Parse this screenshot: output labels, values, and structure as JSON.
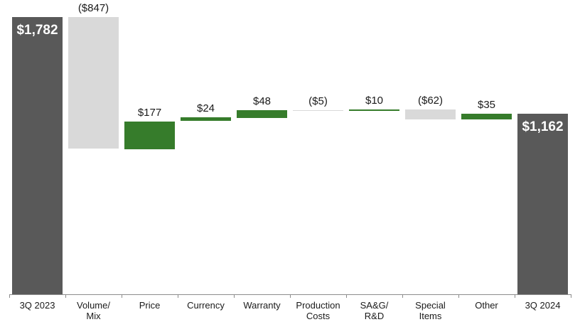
{
  "chart_data": {
    "type": "waterfall",
    "title": "",
    "categories": [
      "3Q 2023",
      "Volume/\nMix",
      "Price",
      "Currency",
      "Warranty",
      "Production\nCosts",
      "SA&G/\nR&D",
      "Special\nItems",
      "Other",
      "3Q 2024"
    ],
    "values": [
      1782,
      -847,
      177,
      24,
      48,
      -5,
      10,
      -62,
      35,
      1162
    ],
    "value_labels": [
      "$1,782",
      "($847)",
      "$177",
      "$24",
      "$48",
      "($5)",
      "$10",
      "($62)",
      "$35",
      "$1,162"
    ],
    "bar_roles": [
      "total",
      "delta",
      "delta",
      "delta",
      "delta",
      "delta",
      "delta",
      "delta",
      "delta",
      "total"
    ],
    "label_placement": [
      "inside",
      "above",
      "above",
      "above",
      "above",
      "above",
      "above",
      "above",
      "above",
      "inside"
    ],
    "ylim": [
      0,
      1800
    ],
    "grid": false,
    "legend": "none",
    "colors": {
      "total": "#595959",
      "increase": "#367C2B",
      "decrease": "#D9D9D9",
      "axis": "#8c8c8c",
      "label_outside": "#1a1a1a",
      "label_inside": "#ffffff",
      "background": "#ffffff"
    }
  }
}
